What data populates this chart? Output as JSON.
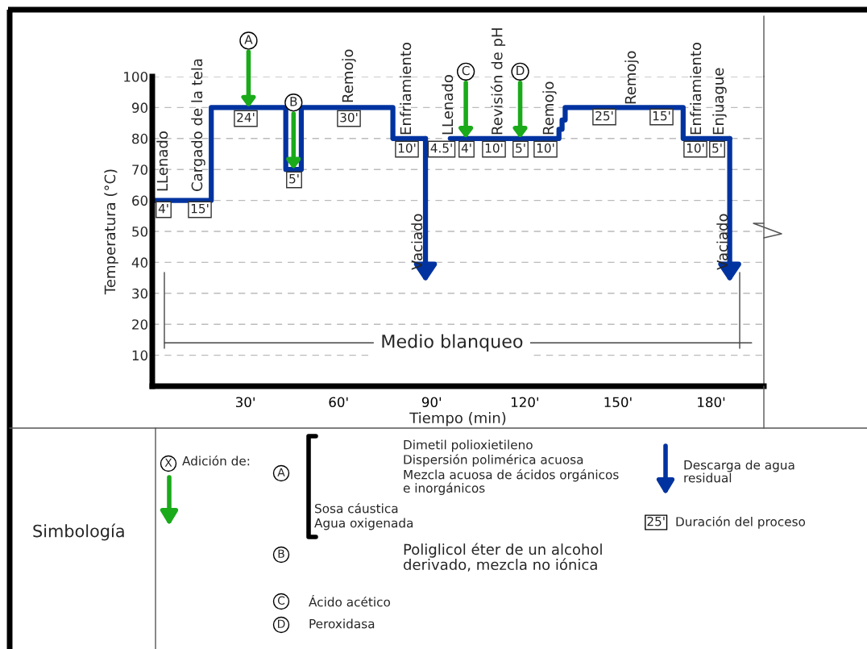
{
  "chart_data": {
    "type": "line",
    "xlabel": "Tiempo (min)",
    "ylabel": "Temperatura (°C)",
    "xlim": [
      0,
      197
    ],
    "ylim": [
      0,
      100
    ],
    "xticks": [
      {
        "value": 30,
        "label": "30'"
      },
      {
        "value": 60,
        "label": "60'"
      },
      {
        "value": 90,
        "label": "90'"
      },
      {
        "value": 120,
        "label": "120'"
      },
      {
        "value": 150,
        "label": "150'"
      },
      {
        "value": 180,
        "label": "180'"
      }
    ],
    "yticks": [
      10,
      20,
      30,
      40,
      50,
      60,
      70,
      80,
      90,
      100
    ],
    "grid": "y",
    "line_style": "solid",
    "series": [
      {
        "color": "#0033a0",
        "x": [
          0,
          19,
          19,
          43,
          43,
          48,
          48,
          77.5,
          77.5,
          88
        ],
        "values": [
          60,
          60,
          90,
          90,
          70,
          70,
          90,
          90,
          80,
          80
        ]
      },
      {
        "color": "#0033a0",
        "x": [
          96,
          131,
          131,
          132,
          132,
          133,
          133,
          171,
          171,
          186
        ],
        "values": [
          80,
          80,
          83,
          83,
          86,
          86,
          90,
          90,
          80,
          80
        ]
      }
    ],
    "ref_lines": [
      {
        "axis": "y",
        "value": 14,
        "label": "Medio blanqueo"
      }
    ],
    "annotations": [
      "LLenado",
      "Cargado de la tela",
      "Remojo",
      "Enfriamiento",
      "Vaciado",
      "LLenado",
      "Revisión de pH",
      "Remojo",
      "Remojo",
      "Enfriamiento",
      "Enjuague",
      "Vaciado",
      "4'",
      "15'",
      "24'",
      "5'",
      "30'",
      "10'",
      "4.5'",
      "4'",
      "10'",
      "5'",
      "10'",
      "25'",
      "15'",
      "10'",
      "5'",
      {
        "text": "A",
        "x": 31,
        "y": 90
      },
      {
        "text": "B",
        "x": 45.5,
        "y": 70
      },
      {
        "text": "C",
        "x": 101,
        "y": 80
      },
      {
        "text": "D",
        "x": 118.5,
        "y": 80
      },
      "Simbología",
      "Adición de:",
      "Dimetil polioxietileno",
      "Dispersión polimérica acuosa",
      "Mezcla acuosa de ácidos orgánicos\ne inorgánicos",
      "Sosa cáustica",
      "Agua oxigenada",
      "Poliglicol éter de un alcohol\nderivado, mezcla no iónica",
      "Ácido acético",
      "Peroxidasa",
      "Descarga de agua\nresidual",
      "Duración del proceso",
      "25'",
      "X",
      "A",
      "B",
      "C",
      "D"
    ]
  }
}
